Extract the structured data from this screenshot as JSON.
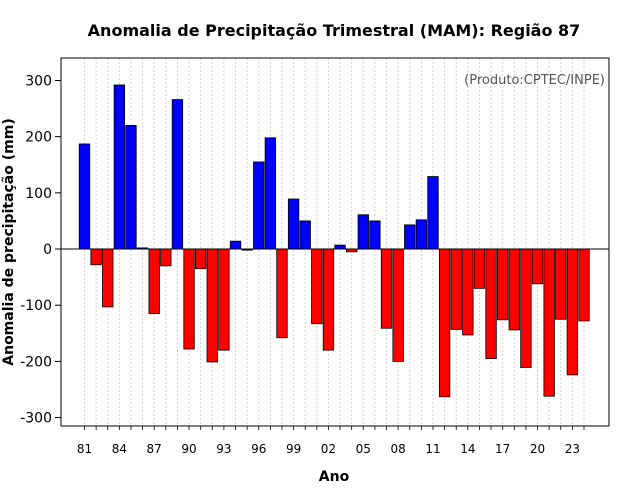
{
  "chart_data": {
    "type": "bar",
    "title": "Anomalia de Precipitação Trimestral (MAM): Região 87",
    "xlabel": "Ano",
    "ylabel": "Anomalia de precipitação (mm)",
    "credit": "(Produto:CPTEC/INPE)",
    "ylim": [
      -315,
      340
    ],
    "yticks": [
      300,
      200,
      100,
      0,
      -100,
      -200,
      -300
    ],
    "ytick_labels": [
      "300",
      "200",
      "100",
      "0",
      "-100",
      "-200",
      "-300"
    ],
    "categories": [
      1981,
      1982,
      1983,
      1984,
      1985,
      1986,
      1987,
      1988,
      1989,
      1990,
      1991,
      1992,
      1993,
      1994,
      1995,
      1996,
      1997,
      1998,
      1999,
      2000,
      2001,
      2002,
      2003,
      2004,
      2005,
      2006,
      2007,
      2008,
      2009,
      2010,
      2011,
      2012,
      2013,
      2014,
      2015,
      2016,
      2017,
      2018,
      2019,
      2020,
      2021,
      2022,
      2023,
      2024
    ],
    "values": [
      187,
      -28,
      -103,
      292,
      220,
      2,
      -115,
      -30,
      266,
      -178,
      -35,
      -201,
      -180,
      14,
      -2,
      155,
      198,
      -158,
      89,
      50,
      -133,
      -180,
      7,
      -5,
      61,
      50,
      -141,
      -200,
      43,
      52,
      129,
      -263,
      -143,
      -153,
      -70,
      -195,
      -126,
      -144,
      -211,
      -62,
      -262,
      -125,
      -224,
      -128
    ],
    "xtick_labels": [
      "81",
      "84",
      "87",
      "90",
      "93",
      "96",
      "99",
      "02",
      "05",
      "08",
      "11",
      "14",
      "17",
      "20",
      "23"
    ],
    "positive_color": "#0000ff",
    "negative_color": "#ff0000",
    "grid": true
  }
}
